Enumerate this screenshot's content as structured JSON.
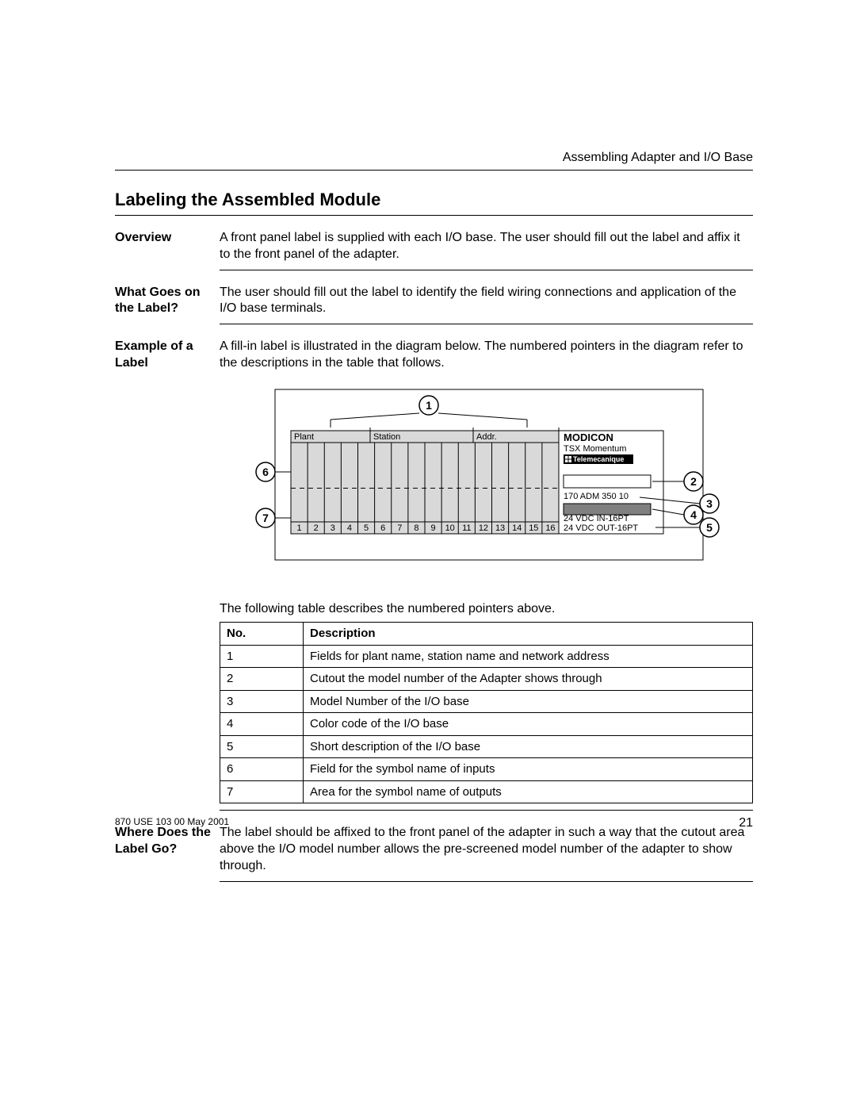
{
  "header": "Assembling Adapter and I/O Base",
  "title": "Labeling the Assembled Module",
  "sections": {
    "overview": {
      "label": "Overview",
      "text": "A front panel label is supplied with each I/O base.  The user should fill out the label and affix it to the front panel of the adapter."
    },
    "whatgoes": {
      "label1": "What Goes on",
      "label2": "the Label?",
      "text": "The user should fill out the label to identify the field wiring connections and application of the I/O base terminals."
    },
    "example": {
      "label1": "Example of a",
      "label2": "Label",
      "text": "A fill-in label is illustrated in the diagram below.  The numbered pointers in the diagram refer to the descriptions in the table that follows.",
      "caption": "The following table describes the numbered pointers above."
    },
    "where": {
      "label1": "Where Does the",
      "label2": "Label Go?",
      "text": "The label should be affixed to the front panel of the adapter in such a way that the cutout area above the I/O model number allows the pre-screened model number of the adapter to show through."
    }
  },
  "diagram": {
    "plant": "Plant",
    "station": "Station",
    "addr": "Addr.",
    "brand": "MODICON",
    "subbrand": "TSX Momentum",
    "tm": "Telemecanique",
    "model": "170 ADM 350 10",
    "desc1": "24 VDC IN-16PT",
    "desc2": "24 VDC OUT-16PT",
    "cols": [
      "1",
      "2",
      "3",
      "4",
      "5",
      "6",
      "7",
      "8",
      "9",
      "10",
      "11",
      "12",
      "13",
      "14",
      "15",
      "16"
    ],
    "callouts": [
      "1",
      "2",
      "3",
      "4",
      "5",
      "6",
      "7"
    ]
  },
  "table": {
    "head": {
      "c1": "No.",
      "c2": "Description"
    },
    "rows": [
      {
        "n": "1",
        "d": "Fields for plant name, station name and network address"
      },
      {
        "n": "2",
        "d": "Cutout the model number of the Adapter shows through"
      },
      {
        "n": "3",
        "d": "Model Number of the I/O base"
      },
      {
        "n": "4",
        "d": "Color code of the I/O base"
      },
      {
        "n": "5",
        "d": "Short description of the I/O base"
      },
      {
        "n": "6",
        "d": "Field for the symbol name of inputs"
      },
      {
        "n": "7",
        "d": "Area for the symbol name of outputs"
      }
    ]
  },
  "footer": {
    "doc": "870 USE 103 00 May 2001",
    "page": "21"
  },
  "style": {
    "label_fill": "#d9d9d9",
    "label_stroke": "#000000",
    "right_panel_fill": "#ffffff",
    "cutout_fill": "#ffffff",
    "colorcode_fill": "#808080",
    "tm_fill": "#000000",
    "tm_text": "#ffffff",
    "font_small": 11,
    "font_tiny": 9,
    "grid_cols": 16
  }
}
